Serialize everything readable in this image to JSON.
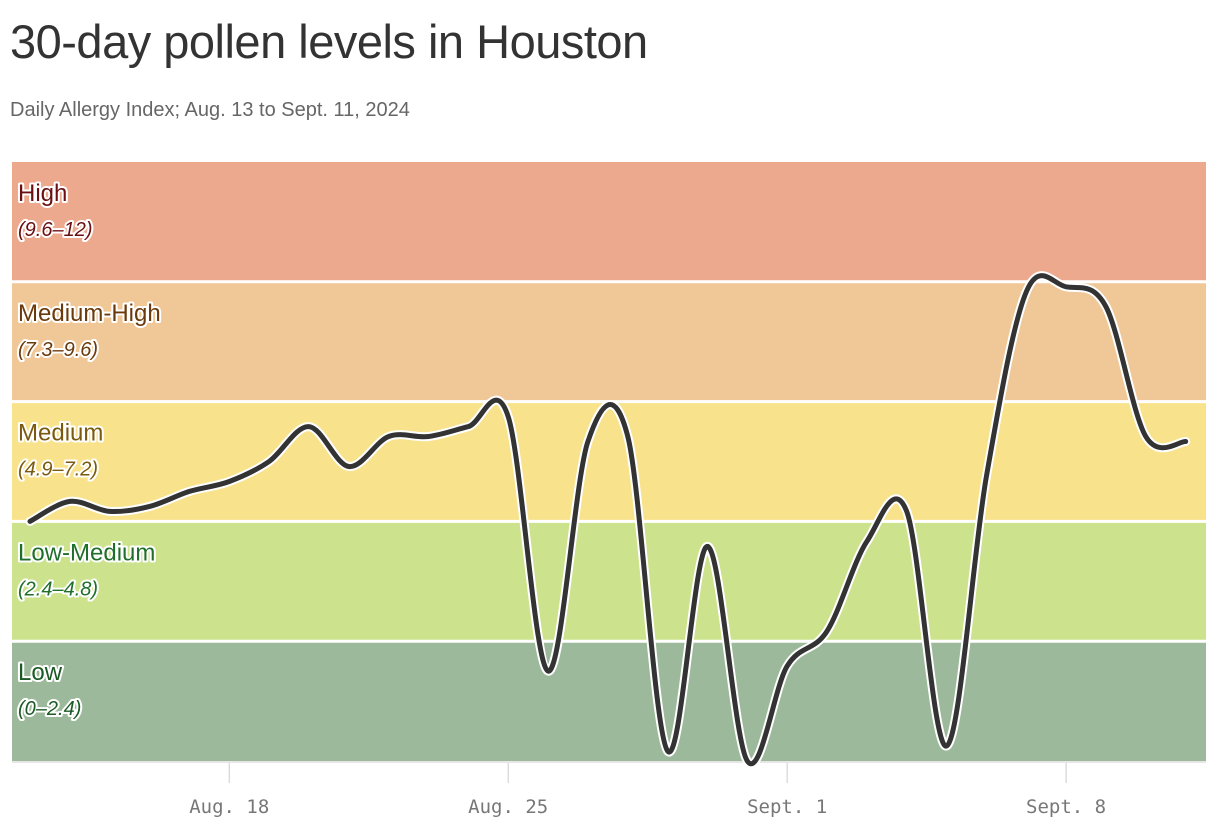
{
  "chart_data": {
    "type": "line",
    "title": "30-day pollen levels in Houston",
    "subtitle": "Daily Allergy Index; Aug. 13 to Sept. 11, 2024",
    "xlabel": "",
    "ylabel": "",
    "ylim": [
      0,
      12
    ],
    "x": [
      "2024-08-13",
      "2024-08-14",
      "2024-08-15",
      "2024-08-16",
      "2024-08-17",
      "2024-08-18",
      "2024-08-19",
      "2024-08-20",
      "2024-08-21",
      "2024-08-22",
      "2024-08-23",
      "2024-08-24",
      "2024-08-25",
      "2024-08-26",
      "2024-08-27",
      "2024-08-28",
      "2024-08-29",
      "2024-08-30",
      "2024-08-31",
      "2024-09-01",
      "2024-09-02",
      "2024-09-03",
      "2024-09-04",
      "2024-09-05",
      "2024-09-06",
      "2024-09-07",
      "2024-09-08",
      "2024-09-09",
      "2024-09-10",
      "2024-09-11"
    ],
    "values": [
      4.8,
      5.2,
      5.0,
      5.1,
      5.4,
      5.6,
      6.0,
      6.7,
      5.9,
      6.5,
      6.5,
      6.7,
      6.9,
      1.8,
      6.4,
      6.5,
      0.2,
      4.3,
      0.0,
      1.9,
      2.6,
      4.4,
      5.0,
      0.3,
      5.7,
      9.4,
      9.5,
      9.1,
      6.5,
      6.4
    ],
    "x_ticks": [
      {
        "date": "2024-08-18",
        "label": "Aug. 18"
      },
      {
        "date": "2024-08-25",
        "label": "Aug. 25"
      },
      {
        "date": "2024-09-01",
        "label": "Sept. 1"
      },
      {
        "date": "2024-09-08",
        "label": "Sept. 8"
      }
    ],
    "bands": [
      {
        "name": "High",
        "range": "(9.6–12)",
        "min": 9.6,
        "max": 12,
        "fill": "#eca98d",
        "text": "#6b0f12"
      },
      {
        "name": "Medium-High",
        "range": "(7.3–9.6)",
        "min": 7.2,
        "max": 9.6,
        "fill": "#f0c796",
        "text": "#6b3a0c"
      },
      {
        "name": "Medium",
        "range": "(4.9–7.2)",
        "min": 4.8,
        "max": 7.2,
        "fill": "#f8e38c",
        "text": "#7a5a0e"
      },
      {
        "name": "Low-Medium",
        "range": "(2.4–4.8)",
        "min": 2.4,
        "max": 4.8,
        "fill": "#cde28c",
        "text": "#1f6f2a"
      },
      {
        "name": "Low",
        "range": "(0–2.4)",
        "min": 0,
        "max": 2.4,
        "fill": "#9db99b",
        "text": "#1b5a24"
      }
    ],
    "line_color": "#333333",
    "grid": false,
    "legend": "none"
  }
}
